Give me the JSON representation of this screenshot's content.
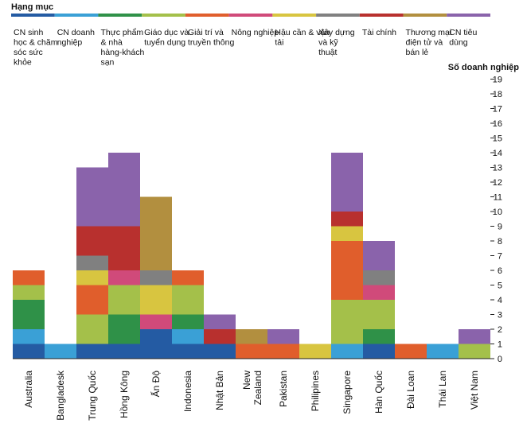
{
  "chart_data": {
    "type": "bar",
    "stacked": true,
    "legend_title": "Hạng mục",
    "ylabel": "Số doanh nghiệp",
    "ylim": [
      0,
      19
    ],
    "yticks": [
      0,
      1,
      2,
      3,
      4,
      5,
      6,
      7,
      8,
      9,
      10,
      11,
      12,
      13,
      14,
      15,
      16,
      17,
      18,
      19
    ],
    "legend_position": "top",
    "grid": false,
    "categories": [
      "Australia",
      "Bangladesk",
      "Trung Quốc",
      "Hồng Kông",
      "Ấn Độ",
      "Indonesia",
      "Nhật Bản",
      "New Zealand",
      "Pakistan",
      "Philipines",
      "Singapore",
      "Hàn Quốc",
      "Đài Loan",
      "Thái Lan",
      "Việt Nam"
    ],
    "series": [
      {
        "name": "CN sinh học & chăm sóc sức khỏe",
        "color": "#245ba3",
        "values": [
          1,
          0,
          1,
          1,
          2,
          1,
          1,
          0,
          0,
          0,
          0,
          1,
          0,
          0,
          0
        ]
      },
      {
        "name": "CN doanh nghiệp",
        "color": "#3aa0d6",
        "values": [
          1,
          1,
          0,
          0,
          0,
          1,
          0,
          0,
          0,
          0,
          1,
          0,
          0,
          1,
          0
        ]
      },
      {
        "name": "Thực phẩm & nhà hàng-khách sạn",
        "color": "#2f9148",
        "values": [
          2,
          0,
          0,
          2,
          0,
          1,
          0,
          0,
          0,
          0,
          0,
          1,
          0,
          0,
          0
        ]
      },
      {
        "name": "Giáo dục và tuyển dụng",
        "color": "#a4c04a",
        "values": [
          1,
          0,
          2,
          2,
          0,
          2,
          0,
          0,
          0,
          0,
          3,
          2,
          0,
          0,
          1
        ]
      },
      {
        "name": "Giải trí và truyền thông",
        "color": "#e05e2c",
        "values": [
          1,
          0,
          2,
          0,
          0,
          1,
          0,
          1,
          1,
          0,
          4,
          0,
          1,
          0,
          0
        ]
      },
      {
        "name": "Nông nghiệp",
        "color": "#d04a7a",
        "values": [
          0,
          0,
          0,
          1,
          1,
          0,
          0,
          0,
          0,
          0,
          0,
          1,
          0,
          0,
          0
        ]
      },
      {
        "name": "Hậu cần & vận tải",
        "color": "#d8c540",
        "values": [
          0,
          0,
          1,
          0,
          2,
          0,
          0,
          0,
          0,
          1,
          1,
          0,
          0,
          0,
          0
        ]
      },
      {
        "name": "Xây dựng và kỹ thuật",
        "color": "#808080",
        "values": [
          0,
          0,
          1,
          0,
          1,
          0,
          0,
          0,
          0,
          0,
          0,
          1,
          0,
          0,
          0
        ]
      },
      {
        "name": "Tài chính",
        "color": "#b8302e",
        "values": [
          0,
          0,
          2,
          3,
          0,
          0,
          1,
          0,
          0,
          0,
          1,
          0,
          0,
          0,
          0
        ]
      },
      {
        "name": "Thương mại điện tử và bán lẻ",
        "color": "#b28f3f",
        "values": [
          0,
          0,
          0,
          0,
          5,
          0,
          0,
          1,
          0,
          0,
          0,
          0,
          0,
          0,
          0
        ]
      },
      {
        "name": "CN tiêu dùng",
        "color": "#8a63ab",
        "values": [
          0,
          0,
          4,
          5,
          0,
          0,
          1,
          0,
          1,
          0,
          4,
          2,
          0,
          0,
          1
        ]
      }
    ]
  }
}
